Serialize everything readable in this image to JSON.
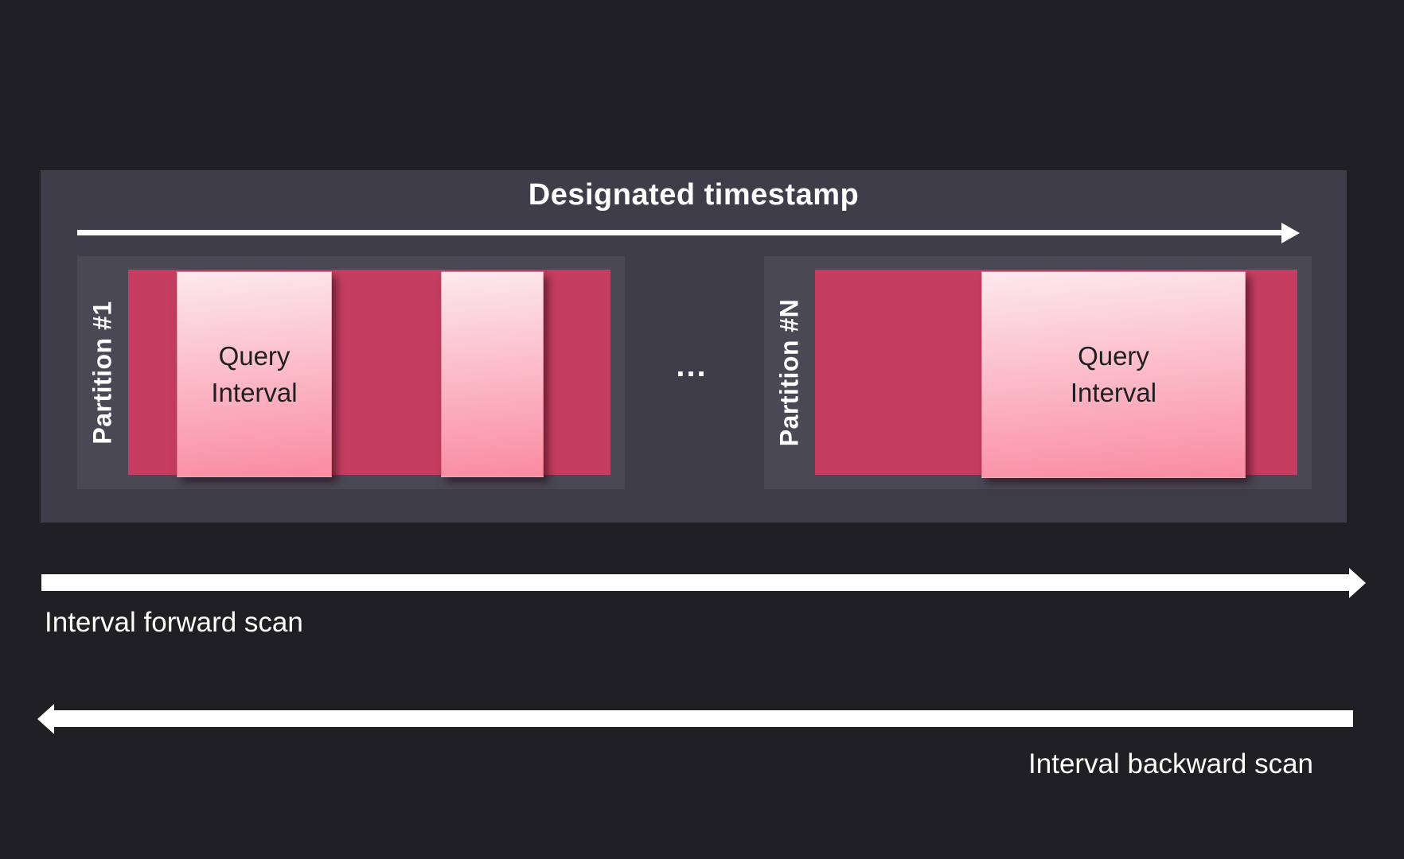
{
  "colors": {
    "background": "#1f1f24",
    "panel": "#3f3d4a",
    "partition_band": "#4a4855",
    "interval_fill": "#c53e61",
    "query_top": "#fde9ee",
    "query_bottom": "#fa8ba1",
    "text_light": "#ffffff",
    "text_dark": "#1f1f23"
  },
  "header": {
    "title": "Designated timestamp"
  },
  "partitions": [
    {
      "label": "Partition #1",
      "blocks": [
        {
          "lines": [
            "Query",
            "Interval"
          ]
        },
        {
          "lines": []
        }
      ]
    },
    {
      "label": "Partition #N",
      "blocks": [
        {
          "lines": [
            "Query",
            "Interval"
          ]
        }
      ]
    }
  ],
  "separator": "...",
  "scans": {
    "forward": {
      "label": "Interval forward scan",
      "direction": "right"
    },
    "backward": {
      "label": "Interval backward scan",
      "direction": "left"
    }
  }
}
